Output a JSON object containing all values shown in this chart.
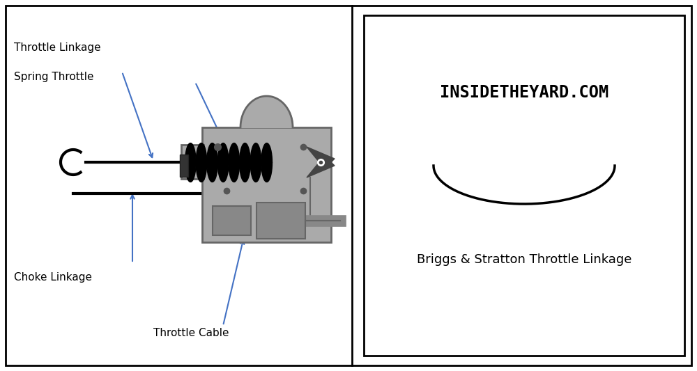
{
  "bg_color": "#ffffff",
  "border_color": "#000000",
  "arrow_color": "#4472c4",
  "text_color": "#000000",
  "title_website": "INSIDETHEYARD.COM",
  "subtitle": "Briggs & Stratton Throttle Linkage",
  "label_throttle_linkage": "Throttle Linkage",
  "label_spring_throttle": "Spring Throttle",
  "label_choke_linkage": "Choke Linkage",
  "label_throttle_cable": "Throttle Cable",
  "gray_body": "#aaaaaa",
  "gray_body_dark": "#888888",
  "dark_gray": "#666666",
  "connector_color": "#444444",
  "box_color": "#777777",
  "box2_color": "#888888"
}
